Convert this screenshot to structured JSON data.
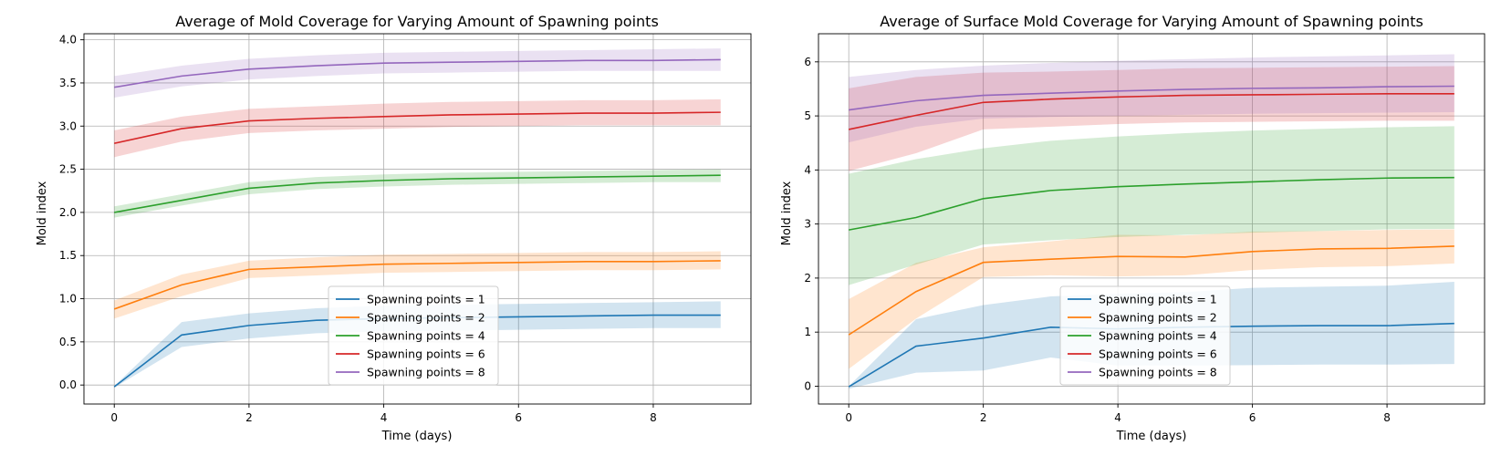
{
  "chart_data": [
    {
      "type": "line",
      "title": "Average of Mold Coverage for Varying Amount of Spawning points",
      "xlabel": "Time (days)",
      "ylabel": "Mold index",
      "xlim": [
        -0.45,
        9.45
      ],
      "ylim": [
        -0.22,
        4.07
      ],
      "xticks": [
        0,
        2,
        4,
        6,
        8
      ],
      "xtick_labels": [
        "0",
        "2",
        "4",
        "6",
        "8"
      ],
      "yticks": [
        0.0,
        0.5,
        1.0,
        1.5,
        2.0,
        2.5,
        3.0,
        3.5,
        4.0
      ],
      "ytick_labels": [
        "0.0",
        "0.5",
        "1.0",
        "1.5",
        "2.0",
        "2.5",
        "3.0",
        "3.5",
        "4.0"
      ],
      "grid": true,
      "legend_position": "bottom-center",
      "x": [
        0,
        1,
        2,
        3,
        4,
        5,
        6,
        7,
        8,
        9
      ],
      "series": [
        {
          "name": "Spawning points = 1",
          "color": "#1f77b4",
          "values": [
            -0.02,
            0.58,
            0.69,
            0.75,
            0.77,
            0.78,
            0.79,
            0.8,
            0.81,
            0.81
          ],
          "lower": [
            -0.03,
            0.44,
            0.54,
            0.6,
            0.62,
            0.63,
            0.64,
            0.65,
            0.66,
            0.66
          ],
          "upper": [
            -0.01,
            0.73,
            0.83,
            0.89,
            0.92,
            0.93,
            0.94,
            0.95,
            0.96,
            0.97
          ]
        },
        {
          "name": "Spawning points = 2",
          "color": "#ff7f0e",
          "values": [
            0.88,
            1.16,
            1.34,
            1.37,
            1.4,
            1.41,
            1.42,
            1.43,
            1.43,
            1.44
          ],
          "lower": [
            0.77,
            1.03,
            1.24,
            1.27,
            1.3,
            1.31,
            1.32,
            1.33,
            1.33,
            1.34
          ],
          "upper": [
            0.98,
            1.28,
            1.44,
            1.48,
            1.51,
            1.52,
            1.53,
            1.54,
            1.54,
            1.55
          ]
        },
        {
          "name": "Spawning points = 4",
          "color": "#2ca02c",
          "values": [
            2.0,
            2.14,
            2.28,
            2.34,
            2.37,
            2.39,
            2.4,
            2.41,
            2.42,
            2.43
          ],
          "lower": [
            1.94,
            2.08,
            2.21,
            2.27,
            2.3,
            2.32,
            2.33,
            2.34,
            2.35,
            2.35
          ],
          "upper": [
            2.07,
            2.21,
            2.35,
            2.41,
            2.44,
            2.46,
            2.47,
            2.48,
            2.49,
            2.5
          ]
        },
        {
          "name": "Spawning points = 6",
          "color": "#d62728",
          "values": [
            2.8,
            2.97,
            3.06,
            3.09,
            3.11,
            3.13,
            3.14,
            3.15,
            3.15,
            3.16
          ],
          "lower": [
            2.64,
            2.82,
            2.92,
            2.95,
            2.97,
            2.99,
            3.0,
            3.01,
            3.01,
            3.01
          ],
          "upper": [
            2.95,
            3.11,
            3.2,
            3.23,
            3.26,
            3.28,
            3.29,
            3.3,
            3.3,
            3.31
          ]
        },
        {
          "name": "Spawning points = 8",
          "color": "#9467bd",
          "values": [
            3.45,
            3.58,
            3.66,
            3.7,
            3.73,
            3.74,
            3.75,
            3.76,
            3.76,
            3.77
          ],
          "lower": [
            3.33,
            3.46,
            3.54,
            3.58,
            3.61,
            3.62,
            3.63,
            3.64,
            3.64,
            3.64
          ],
          "upper": [
            3.58,
            3.7,
            3.78,
            3.82,
            3.85,
            3.86,
            3.87,
            3.88,
            3.89,
            3.9
          ]
        }
      ]
    },
    {
      "type": "line",
      "title": "Average of Surface Mold Coverage for Varying Amount of Spawning points",
      "xlabel": "Time (days)",
      "ylabel": "Mold index",
      "xlim": [
        -0.45,
        9.45
      ],
      "ylim": [
        -0.33,
        6.52
      ],
      "xticks": [
        0,
        2,
        4,
        6,
        8
      ],
      "xtick_labels": [
        "0",
        "2",
        "4",
        "6",
        "8"
      ],
      "yticks": [
        0,
        1,
        2,
        3,
        4,
        5,
        6
      ],
      "ytick_labels": [
        "0",
        "1",
        "2",
        "3",
        "4",
        "5",
        "6"
      ],
      "grid": true,
      "legend_position": "bottom-center",
      "x": [
        0,
        1,
        2,
        3,
        4,
        5,
        6,
        7,
        8,
        9
      ],
      "series": [
        {
          "name": "Spawning points = 1",
          "color": "#1f77b4",
          "values": [
            -0.01,
            0.74,
            0.89,
            1.09,
            1.06,
            1.09,
            1.11,
            1.12,
            1.12,
            1.16
          ],
          "lower": [
            -0.05,
            0.25,
            0.29,
            0.53,
            0.38,
            0.38,
            0.39,
            0.4,
            0.4,
            0.41
          ],
          "upper": [
            0.0,
            1.24,
            1.5,
            1.66,
            1.71,
            1.74,
            1.82,
            1.84,
            1.86,
            1.93
          ]
        },
        {
          "name": "Spawning points = 2",
          "color": "#ff7f0e",
          "values": [
            0.95,
            1.75,
            2.29,
            2.35,
            2.4,
            2.39,
            2.49,
            2.54,
            2.55,
            2.59
          ],
          "lower": [
            0.32,
            1.25,
            2.02,
            2.05,
            2.03,
            2.05,
            2.15,
            2.2,
            2.22,
            2.27
          ],
          "upper": [
            1.61,
            2.28,
            2.57,
            2.68,
            2.8,
            2.79,
            2.86,
            2.87,
            2.89,
            2.9
          ]
        },
        {
          "name": "Spawning points = 4",
          "color": "#2ca02c",
          "values": [
            2.89,
            3.12,
            3.47,
            3.62,
            3.69,
            3.74,
            3.78,
            3.82,
            3.85,
            3.86
          ],
          "lower": [
            1.87,
            2.25,
            2.62,
            2.7,
            2.76,
            2.8,
            2.84,
            2.87,
            2.9,
            2.91
          ],
          "upper": [
            3.93,
            4.2,
            4.4,
            4.54,
            4.62,
            4.68,
            4.73,
            4.76,
            4.79,
            4.81
          ]
        },
        {
          "name": "Spawning points = 6",
          "color": "#d62728",
          "values": [
            4.75,
            5.01,
            5.25,
            5.31,
            5.35,
            5.38,
            5.39,
            5.4,
            5.41,
            5.41
          ],
          "lower": [
            3.98,
            4.31,
            4.75,
            4.8,
            4.85,
            4.88,
            4.89,
            4.9,
            4.91,
            4.91
          ],
          "upper": [
            5.51,
            5.72,
            5.8,
            5.82,
            5.85,
            5.88,
            5.89,
            5.9,
            5.91,
            5.92
          ]
        },
        {
          "name": "Spawning points = 8",
          "color": "#9467bd",
          "values": [
            5.11,
            5.28,
            5.38,
            5.42,
            5.46,
            5.49,
            5.51,
            5.52,
            5.54,
            5.55
          ],
          "lower": [
            4.51,
            4.8,
            4.95,
            4.98,
            5.0,
            5.02,
            5.04,
            5.05,
            5.06,
            5.07
          ],
          "upper": [
            5.72,
            5.85,
            5.93,
            5.98,
            6.02,
            6.05,
            6.08,
            6.1,
            6.12,
            6.14
          ]
        }
      ]
    }
  ]
}
